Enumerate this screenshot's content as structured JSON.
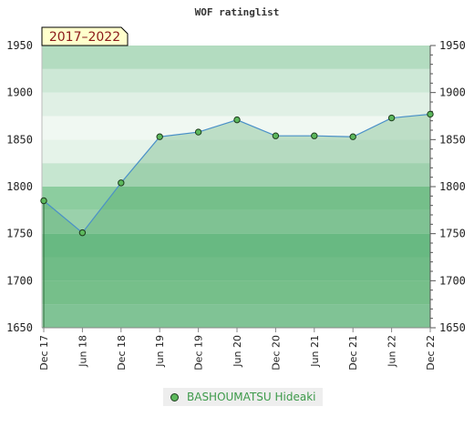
{
  "chart_data": {
    "type": "area",
    "title": "WOF ratinglist",
    "period_label": "2017–2022",
    "ylim": [
      1650,
      1950
    ],
    "yticks": [
      1650,
      1700,
      1750,
      1800,
      1850,
      1900,
      1950
    ],
    "x": [
      "Dec 17",
      "Jun 18",
      "Dec 18",
      "Jun 19",
      "Dec 19",
      "Jun 20",
      "Dec 20",
      "Jun 21",
      "Dec 21",
      "Jun 22",
      "Dec 22"
    ],
    "series": [
      {
        "name": "BASHOUMATSU Hideaki",
        "values": [
          1785,
          1751,
          1804,
          1853,
          1858,
          1871,
          1854,
          1854,
          1853,
          1873,
          1877
        ]
      }
    ],
    "legend_position": "bottom-center",
    "colors": {
      "line": "#4a90c8",
      "marker": "#5cb85c",
      "band_strong": "#7bc896",
      "band_light": "#e6f4ea"
    }
  }
}
